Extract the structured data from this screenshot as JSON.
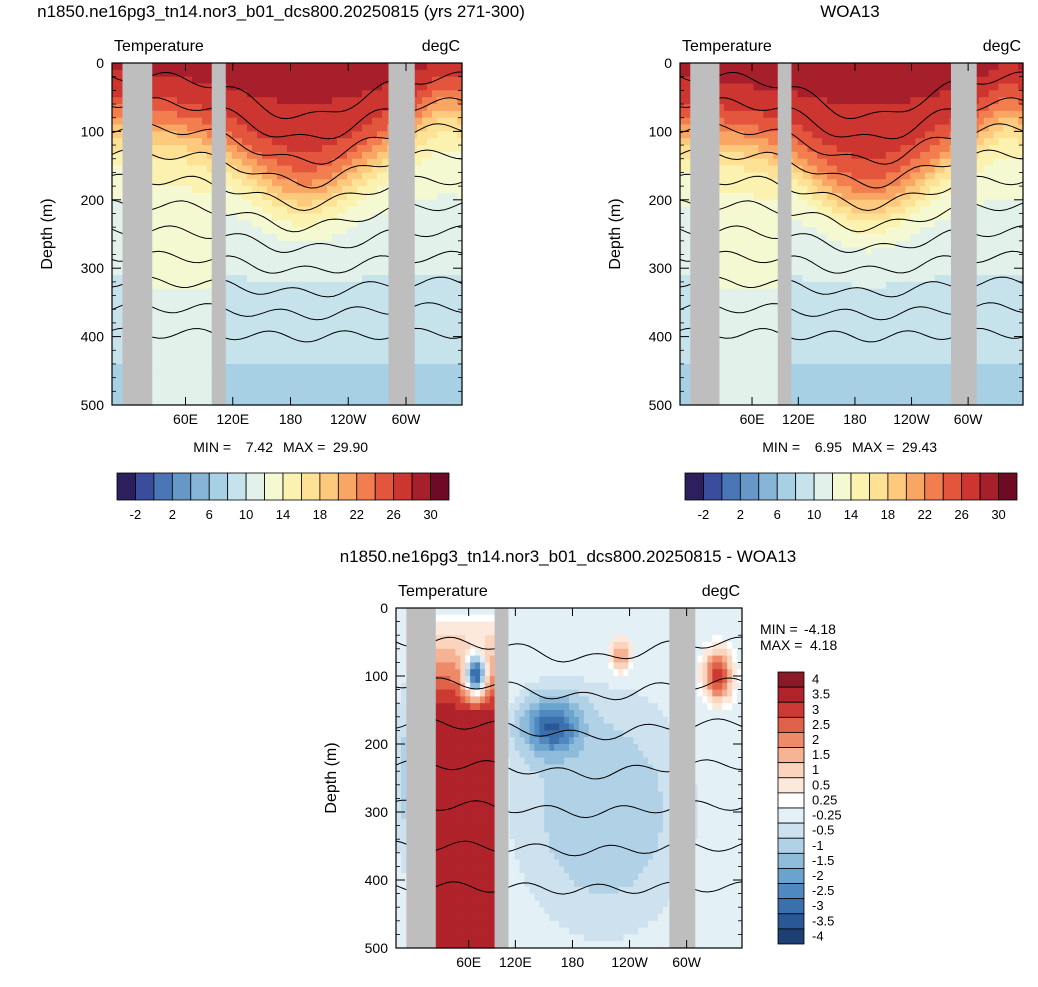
{
  "chart_data": [
    {
      "type": "heatmap",
      "title": "n1850.ne16pg3_tn14.nor3_b01_dcs800.20250815 (yrs 271-300)",
      "left_label": "Temperature",
      "right_label": "degC",
      "ylabel": "Depth (m)",
      "xticks": [
        "60E",
        "120E",
        "180",
        "120W",
        "60W"
      ],
      "yticks": [
        "0",
        "100",
        "200",
        "300",
        "400",
        "500"
      ],
      "ylim": [
        0,
        500
      ],
      "min_label": "MIN =",
      "min_value": "7.42",
      "max_label": "MAX =",
      "max_value": "29.90",
      "colorbar": {
        "levels": [
          -4,
          -2,
          0,
          2,
          4,
          6,
          8,
          10,
          12,
          14,
          16,
          18,
          20,
          22,
          24,
          26,
          28,
          30
        ],
        "labels": [
          "-2",
          "2",
          "6",
          "10",
          "14",
          "18",
          "22",
          "26",
          "30"
        ]
      }
    },
    {
      "type": "heatmap",
      "title": "WOA13",
      "left_label": "Temperature",
      "right_label": "degC",
      "ylabel": "Depth (m)",
      "xticks": [
        "60E",
        "120E",
        "180",
        "120W",
        "60W"
      ],
      "yticks": [
        "0",
        "100",
        "200",
        "300",
        "400",
        "500"
      ],
      "ylim": [
        0,
        500
      ],
      "min_label": "MIN =",
      "min_value": "6.95",
      "max_label": "MAX =",
      "max_value": "29.43",
      "colorbar": {
        "levels": [
          -4,
          -2,
          0,
          2,
          4,
          6,
          8,
          10,
          12,
          14,
          16,
          18,
          20,
          22,
          24,
          26,
          28,
          30
        ],
        "labels": [
          "-2",
          "2",
          "6",
          "10",
          "14",
          "18",
          "22",
          "26",
          "30"
        ]
      }
    },
    {
      "type": "heatmap",
      "title": "n1850.ne16pg3_tn14.nor3_b01_dcs800.20250815 - WOA13",
      "left_label": "Temperature",
      "right_label": "degC",
      "ylabel": "Depth (m)",
      "xticks": [
        "60E",
        "120E",
        "180",
        "120W",
        "60W"
      ],
      "yticks": [
        "0",
        "100",
        "200",
        "300",
        "400",
        "500"
      ],
      "ylim": [
        0,
        500
      ],
      "min_label": "MIN =",
      "min_value": "-4.18",
      "max_label": "MAX =",
      "max_value": "4.18",
      "colorbar": {
        "labels": [
          "4",
          "3.5",
          "3",
          "2.5",
          "2",
          "1.5",
          "1",
          "0.5",
          "0.25",
          "-0.25",
          "-0.5",
          "-1",
          "-1.5",
          "-2",
          "-2.5",
          "-3",
          "-3.5",
          "-4"
        ]
      }
    }
  ],
  "palettes": {
    "temperature": [
      "#2d1e5e",
      "#3a4d9c",
      "#4a76b5",
      "#6697c6",
      "#86b5d7",
      "#a7d0e4",
      "#c6e3ec",
      "#e2f1ea",
      "#f4f9d2",
      "#fbf2b0",
      "#fde296",
      "#fdc97c",
      "#f9a664",
      "#f27e4f",
      "#e4553d",
      "#cc3530",
      "#a81f2c",
      "#6f0a25"
    ],
    "difference": [
      "#8a1a27",
      "#b0232a",
      "#cc3a33",
      "#df6148",
      "#ee8a6a",
      "#f6b394",
      "#fbd4be",
      "#fde9dc",
      "#ffffff",
      "#e3f0f6",
      "#cde2ee",
      "#b0d1e6",
      "#8fbbdb",
      "#6ba3cf",
      "#4f89c0",
      "#3a70ad",
      "#2a5896",
      "#1c3f74"
    ],
    "land": "#bebebe"
  }
}
